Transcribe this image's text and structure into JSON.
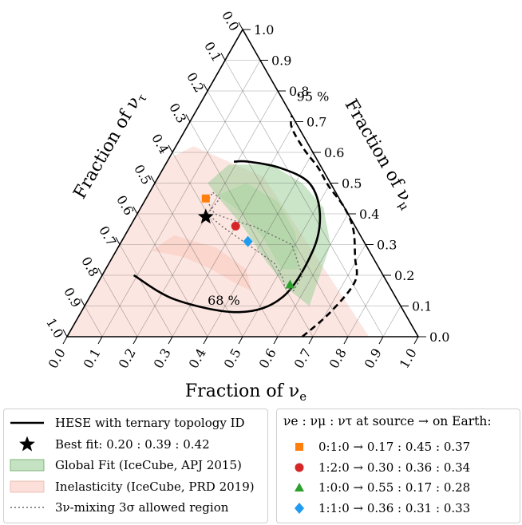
{
  "chart_data": {
    "type": "ternary",
    "axes": {
      "bottom": {
        "label": "Fraction of ν",
        "label_sub": "e",
        "ticks": [
          "0.0",
          "0.1",
          "0.2",
          "0.3",
          "0.4",
          "0.5",
          "0.6",
          "0.7",
          "0.8",
          "0.9",
          "1.0"
        ]
      },
      "right": {
        "label": "Fraction of ν",
        "label_sub": "μ",
        "ticks": [
          "0.0",
          "0.1",
          "0.2",
          "0.3",
          "0.4",
          "0.5",
          "0.6",
          "0.7",
          "0.8",
          "0.9",
          "1.0"
        ]
      },
      "left": {
        "label": "Fraction of ν",
        "label_sub": "τ",
        "ticks": [
          "0.0",
          "0.1",
          "0.2",
          "0.3",
          "0.4",
          "0.5",
          "0.6",
          "0.7",
          "0.8",
          "0.9",
          "1.0"
        ]
      }
    },
    "grid": true,
    "contours": [
      {
        "label": "68 %",
        "style": "solid",
        "points": [
          [
            0.09,
            0.2,
            0.71
          ],
          [
            0.25,
            0.12,
            0.63
          ],
          [
            0.45,
            0.08,
            0.47
          ],
          [
            0.55,
            0.13,
            0.32
          ],
          [
            0.56,
            0.28,
            0.16
          ],
          [
            0.52,
            0.4,
            0.08
          ],
          [
            0.44,
            0.5,
            0.06
          ],
          [
            0.33,
            0.55,
            0.12
          ],
          [
            0.23,
            0.57,
            0.2
          ],
          [
            0.19,
            0.57,
            0.24
          ]
        ]
      },
      {
        "label": "95 %",
        "style": "dashed",
        "points": [
          [
            0.67,
            0.0,
            0.33
          ],
          [
            0.71,
            0.08,
            0.21
          ],
          [
            0.73,
            0.18,
            0.09
          ],
          [
            0.69,
            0.26,
            0.05
          ],
          [
            0.64,
            0.35,
            0.01
          ],
          [
            0.58,
            0.42,
            0.0
          ],
          [
            0.5,
            0.49,
            0.01
          ],
          [
            0.44,
            0.55,
            0.01
          ],
          [
            0.37,
            0.61,
            0.02
          ],
          [
            0.3,
            0.68,
            0.02
          ],
          [
            0.28,
            0.72,
            0.0
          ]
        ]
      }
    ],
    "bands": [
      {
        "name": "Global Fit (IceCube, APJ 2015)",
        "color": "#9fd09a"
      },
      {
        "name": "Inelasticity (IceCube, PRD 2019)",
        "color": "#f9d2c8"
      }
    ],
    "best_fit": {
      "label": "Best fit: 0.20 : 0.39 : 0.42",
      "e": 0.2,
      "mu": 0.39,
      "tau": 0.42
    },
    "mixing_region": {
      "label": "3ν-mixing 3σ allowed region"
    },
    "source_points": [
      {
        "label": "0:1:0 → 0.17 : 0.45 : 0.37",
        "e": 0.17,
        "mu": 0.45,
        "tau": 0.37,
        "marker": "square",
        "color": "#ff7f0e"
      },
      {
        "label": "1:2:0 → 0.30 : 0.36 : 0.34",
        "e": 0.3,
        "mu": 0.36,
        "tau": 0.34,
        "marker": "circle",
        "color": "#d62728"
      },
      {
        "label": "1:0:0 → 0.55 : 0.17 : 0.28",
        "e": 0.55,
        "mu": 0.17,
        "tau": 0.28,
        "marker": "triangle",
        "color": "#2ca02c"
      },
      {
        "label": "1:1:0 → 0.36 : 0.31 : 0.33",
        "e": 0.36,
        "mu": 0.31,
        "tau": 0.33,
        "marker": "diamond",
        "color": "#1f9bf0"
      }
    ]
  },
  "legend_left": {
    "items": [
      {
        "key": "solid-line",
        "label": "HESE with ternary topology ID"
      },
      {
        "key": "star",
        "label": "Best fit: 0.20 : 0.39 : 0.42"
      },
      {
        "key": "green-patch",
        "label": "Global Fit (IceCube, APJ 2015)"
      },
      {
        "key": "pink-patch",
        "label": "Inelasticity (IceCube, PRD 2019)"
      },
      {
        "key": "dotted-line",
        "label": "3ν-mixing 3σ allowed region"
      }
    ]
  },
  "legend_right": {
    "title": "νe : νμ : ντ at source → on Earth:"
  }
}
